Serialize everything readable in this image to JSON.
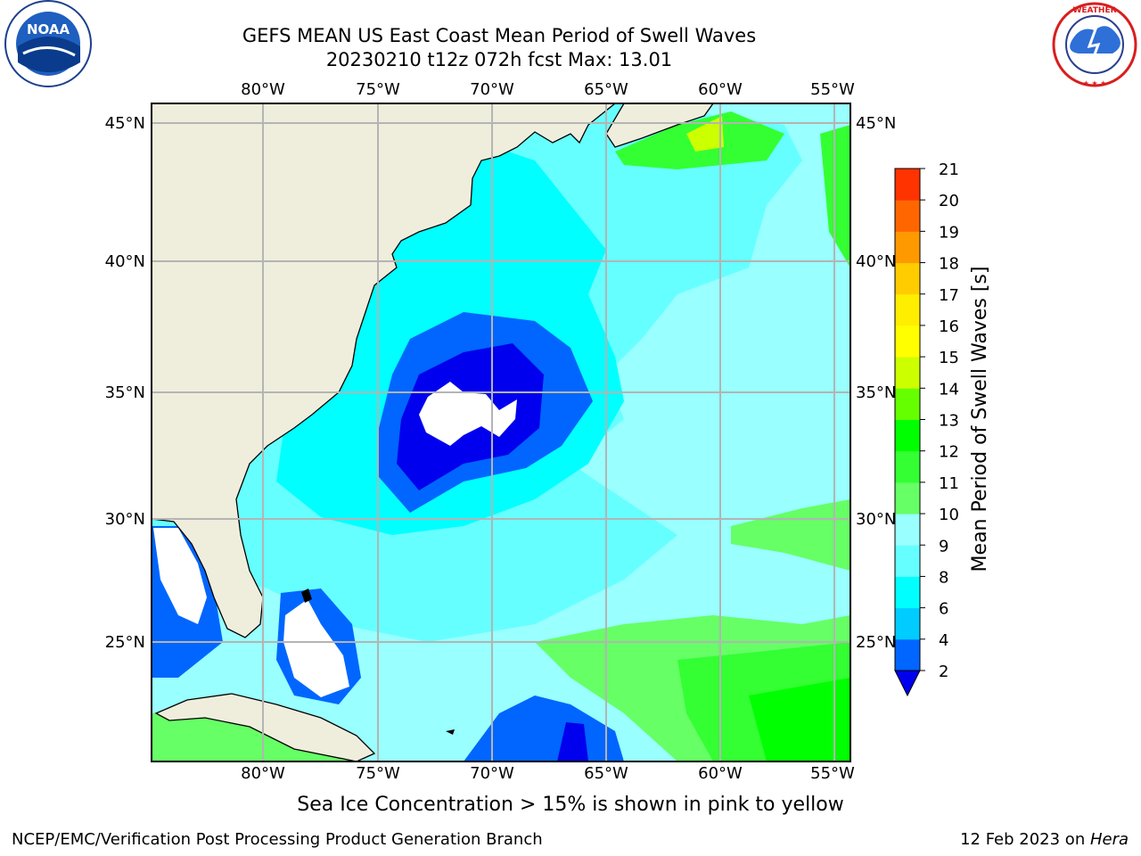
{
  "header": {
    "title_line1": "GEFS MEAN US East Coast Mean Period of Swell Waves",
    "title_line2": "20230210 t12z 072h fcst   Max: 13.01"
  },
  "logos": {
    "left": "noaa-logo",
    "right": "national-weather-service-logo"
  },
  "map": {
    "lon_ticks": [
      "80°W",
      "75°W",
      "70°W",
      "65°W",
      "60°W",
      "55°W"
    ],
    "lat_ticks": [
      "45°N",
      "40°N",
      "35°N",
      "30°N",
      "25°N"
    ],
    "land_color": "#efeedd",
    "grid_color": "#b4b4b4"
  },
  "colorbar": {
    "label": "Mean Period of Swell Waves [s]",
    "ticks": [
      "2",
      "4",
      "6",
      "8",
      "9",
      "10",
      "11",
      "12",
      "13",
      "14",
      "15",
      "16",
      "17",
      "18",
      "19",
      "20",
      "21"
    ],
    "colors": [
      "#0066ff",
      "#00ccff",
      "#00ffff",
      "#66ffff",
      "#99ffff",
      "#66ff66",
      "#33ff33",
      "#00ff00",
      "#66ff00",
      "#ccff00",
      "#ffff00",
      "#ffee00",
      "#ffcc00",
      "#ff9900",
      "#ff6600",
      "#ff3300",
      "#ff0000"
    ],
    "under_color": "#0000ee"
  },
  "notes": {
    "ice": "Sea Ice Concentration > 15% is shown in pink to yellow",
    "footer_left": "NCEP/EMC/Verification Post Processing Product Generation Branch",
    "footer_right_prefix": "12 Feb 2023 on ",
    "footer_right_host": "Hera"
  }
}
